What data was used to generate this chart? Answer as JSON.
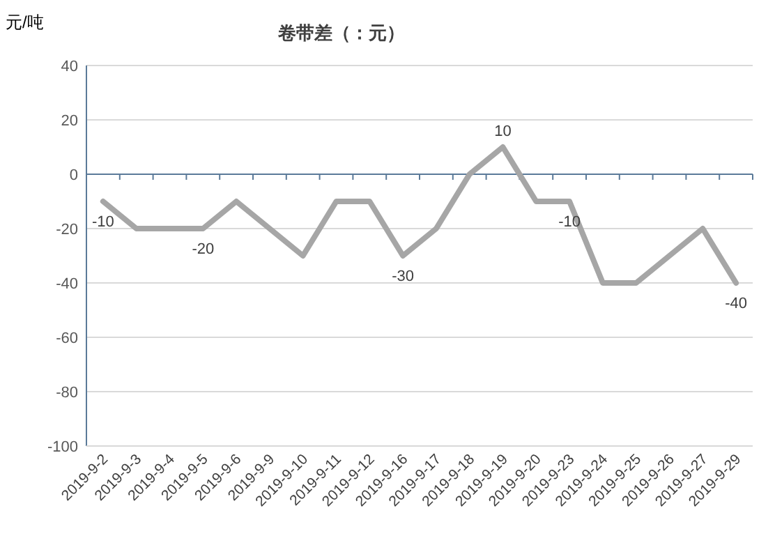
{
  "chart_data": {
    "type": "line",
    "title": "卷带差（：元）",
    "ylabel": "元/吨",
    "categories": [
      "2019-9-2",
      "2019-9-3",
      "2019-9-4",
      "2019-9-5",
      "2019-9-6",
      "2019-9-9",
      "2019-9-10",
      "2019-9-11",
      "2019-9-12",
      "2019-9-16",
      "2019-9-17",
      "2019-9-18",
      "2019-9-19",
      "2019-9-20",
      "2019-9-23",
      "2019-9-24",
      "2019-9-25",
      "2019-9-26",
      "2019-9-27",
      "2019-9-29"
    ],
    "series": [
      {
        "color": "#a6a6a6",
        "values": [
          -10,
          -20,
          -20,
          -20,
          -10,
          -20,
          -30,
          -10,
          -10,
          -30,
          -20,
          0,
          10,
          -10,
          -10,
          -40,
          -40,
          -30,
          -20,
          -40
        ],
        "value_labels": [
          "-10",
          null,
          null,
          "-20",
          null,
          null,
          null,
          null,
          null,
          "-30",
          null,
          null,
          "10",
          null,
          "-10",
          null,
          null,
          null,
          null,
          "-40"
        ]
      }
    ],
    "ylim": [
      -100,
      40
    ],
    "yticks": [
      -100,
      -80,
      -60,
      -40,
      -20,
      0,
      20,
      40
    ],
    "ref_lines": [
      {
        "axis": "y",
        "value": 0,
        "color": "#5b7a99"
      }
    ],
    "grid": "y",
    "marker": "none",
    "line_style": "solid"
  }
}
